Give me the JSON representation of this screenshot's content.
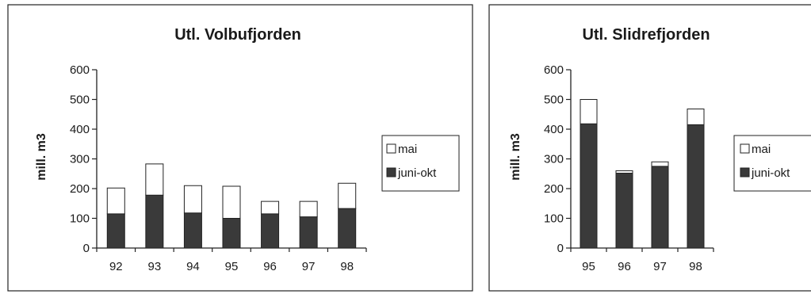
{
  "colors": {
    "lower": "#3a3a3a",
    "upper": "#ffffff",
    "axis": "#222222"
  },
  "chart_data": [
    {
      "type": "bar",
      "stacked": true,
      "title": "Utl. Volbufjorden",
      "ylabel": "mill. m3",
      "xlabel": "",
      "ylim": [
        0,
        600
      ],
      "yticks": [
        "0",
        "100",
        "200",
        "300",
        "400",
        "500",
        "600"
      ],
      "categories": [
        "92",
        "93",
        "94",
        "95",
        "96",
        "97",
        "98"
      ],
      "series": [
        {
          "name": "juni-okt",
          "values": [
            115,
            178,
            118,
            100,
            115,
            105,
            133
          ]
        },
        {
          "name": "mai",
          "values": [
            87,
            105,
            92,
            108,
            42,
            52,
            85
          ]
        }
      ],
      "legend": [
        "mai",
        "juni-okt"
      ],
      "legend_position": "right"
    },
    {
      "type": "bar",
      "stacked": true,
      "title": "Utl. Slidrefjorden",
      "ylabel": "mill. m3",
      "xlabel": "",
      "ylim": [
        0,
        600
      ],
      "yticks": [
        "0",
        "100",
        "200",
        "300",
        "400",
        "500",
        "600"
      ],
      "categories": [
        "95",
        "96",
        "97",
        "98"
      ],
      "series": [
        {
          "name": "juni-okt",
          "values": [
            418,
            252,
            275,
            415
          ]
        },
        {
          "name": "mai",
          "values": [
            82,
            8,
            15,
            53
          ]
        }
      ],
      "legend": [
        "mai",
        "juni-okt"
      ],
      "legend_position": "right"
    }
  ]
}
